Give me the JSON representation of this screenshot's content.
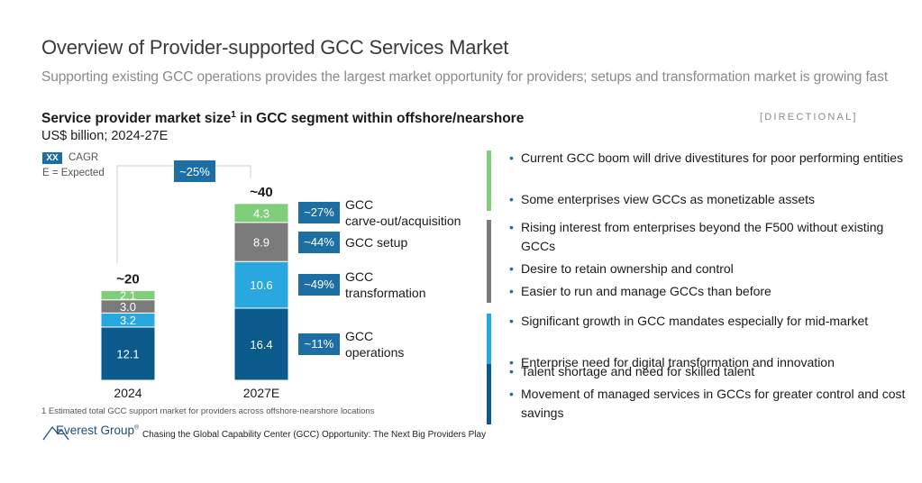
{
  "header": {
    "title": "Overview of Provider-supported GCC Services Market",
    "subtitle": "Supporting existing GCC operations provides the largest market opportunity for providers; setups and transformation market is growing fast"
  },
  "chart_header": {
    "title": "Service provider market size",
    "title_sup": "1",
    "title_rest": " in GCC segment within offshore/nearshore",
    "units": "US$ billion; 2024-27E",
    "directional": "[DIRECTIONAL]",
    "legend_box": "XX",
    "legend_cagr": "CAGR",
    "legend_expected": "E = Expected"
  },
  "chart_data": {
    "type": "bar",
    "stacked": true,
    "categories": [
      "2024",
      "2027E"
    ],
    "totals": [
      "~20",
      "~40"
    ],
    "overall_cagr": "~25%",
    "series": [
      {
        "name": "GCC operations",
        "label_lines": [
          "GCC",
          "operations"
        ],
        "values": [
          12.1,
          16.4
        ],
        "cagr": "~11%",
        "color": "#0b5a8c"
      },
      {
        "name": "GCC transformation",
        "label_lines": [
          "GCC",
          "transformation"
        ],
        "values": [
          3.2,
          10.6
        ],
        "cagr": "~49%",
        "color": "#29a8df"
      },
      {
        "name": "GCC setup",
        "label_lines": [
          "GCC setup"
        ],
        "values": [
          3.0,
          8.9
        ],
        "cagr": "~44%",
        "color": "#7a7a7a"
      },
      {
        "name": "GCC carve-out/acquisition",
        "label_lines": [
          "GCC",
          "carve-out/acquisition"
        ],
        "values": [
          2.1,
          4.3
        ],
        "cagr": "~27%",
        "color": "#7fcf7a"
      }
    ]
  },
  "bullets": [
    {
      "color": "#7fcf7a",
      "items": [
        "Current GCC boom will drive divestitures for poor performing entities",
        "Some enterprises view GCCs as monetizable assets"
      ]
    },
    {
      "color": "#7a7a7a",
      "items": [
        "Rising interest from enterprises beyond the F500 without existing GCCs",
        "Desire to retain ownership and control",
        "Easier to run and manage GCCs than before"
      ]
    },
    {
      "color": "#29a8df",
      "items": [
        "Significant growth in GCC mandates especially for mid-market",
        "Enterprise need for digital transformation and innovation"
      ]
    },
    {
      "color": "#0b5a8c",
      "items": [
        "Talent shortage and need for skilled talent",
        "Movement of managed services in GCCs for greater control and cost savings"
      ]
    }
  ],
  "footer": {
    "footnote": "1 Estimated total GCC support market for providers across offshore-nearshore locations",
    "logo_name": "Everest Group",
    "logo_reg": "®",
    "tagline": "Chasing the Global Capability Center (GCC) Opportunity: The Next Big Providers Play"
  }
}
